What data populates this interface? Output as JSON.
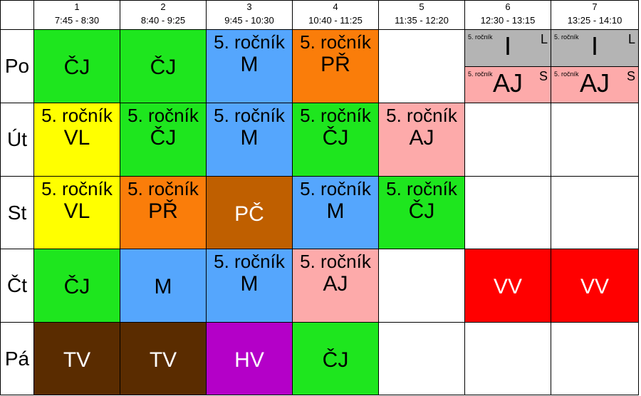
{
  "colors": {
    "green": "#1ee61e",
    "blue": "#55a6fd",
    "orange": "#fa7d0a",
    "pink": "#fdaaaa",
    "yellow": "#ffff00",
    "brown_light": "#bf5f00",
    "brown_dark": "#5a2c00",
    "purple": "#b400c8",
    "red": "#ff0000",
    "gray": "#b4b4b4",
    "white": "#ffffff"
  },
  "periods": [
    {
      "num": "1",
      "time": "7:45 - 8:30"
    },
    {
      "num": "2",
      "time": "8:40 - 9:25"
    },
    {
      "num": "3",
      "time": "9:45 - 10:30"
    },
    {
      "num": "4",
      "time": "10:40 - 11:25"
    },
    {
      "num": "5",
      "time": "11:35 - 12:20"
    },
    {
      "num": "6",
      "time": "12:30 - 13:15"
    },
    {
      "num": "7",
      "time": "13:25 - 14:10"
    }
  ],
  "days": [
    {
      "label": "Po",
      "cells": [
        {
          "subject": "ČJ",
          "color": "green"
        },
        {
          "subject": "ČJ",
          "color": "green"
        },
        {
          "subject": "M",
          "sub": "5. ročník",
          "color": "blue"
        },
        {
          "subject": "PŘ",
          "sub": "5. ročník",
          "color": "orange"
        },
        {
          "color": "white"
        },
        {
          "split": [
            {
              "subject": "I",
              "sub": "5. ročník",
              "corner": "L",
              "color": "gray"
            },
            {
              "subject": "AJ",
              "sub": "5. ročník",
              "corner": "S",
              "color": "pink"
            }
          ]
        },
        {
          "split": [
            {
              "subject": "I",
              "sub": "5. ročník",
              "corner": "L",
              "color": "gray"
            },
            {
              "subject": "AJ",
              "sub": "5. ročník",
              "corner": "S",
              "color": "pink"
            }
          ]
        }
      ]
    },
    {
      "label": "Út",
      "cells": [
        {
          "subject": "VL",
          "sub": "5. ročník",
          "color": "yellow"
        },
        {
          "subject": "ČJ",
          "sub": "5. ročník",
          "color": "green"
        },
        {
          "subject": "M",
          "sub": "5. ročník",
          "color": "blue"
        },
        {
          "subject": "ČJ",
          "sub": "5. ročník",
          "color": "green"
        },
        {
          "subject": "AJ",
          "sub": "5. ročník",
          "color": "pink"
        },
        {
          "color": "white"
        },
        {
          "color": "white"
        }
      ]
    },
    {
      "label": "St",
      "cells": [
        {
          "subject": "VL",
          "sub": "5. ročník",
          "color": "yellow"
        },
        {
          "subject": "PŘ",
          "sub": "5. ročník",
          "color": "orange"
        },
        {
          "subject": "PČ",
          "color": "brown_light",
          "text": "white"
        },
        {
          "subject": "M",
          "sub": "5. ročník",
          "color": "blue"
        },
        {
          "subject": "ČJ",
          "sub": "5. ročník",
          "color": "green"
        },
        {
          "color": "white"
        },
        {
          "color": "white"
        }
      ]
    },
    {
      "label": "Čt",
      "cells": [
        {
          "subject": "ČJ",
          "color": "green"
        },
        {
          "subject": "M",
          "color": "blue"
        },
        {
          "subject": "M",
          "sub": "5. ročník",
          "color": "blue"
        },
        {
          "subject": "AJ",
          "sub": "5. ročník",
          "color": "pink"
        },
        {
          "color": "white"
        },
        {
          "subject": "VV",
          "color": "red",
          "text": "white"
        },
        {
          "subject": "VV",
          "color": "red",
          "text": "white"
        }
      ]
    },
    {
      "label": "Pá",
      "cells": [
        {
          "subject": "TV",
          "color": "brown_dark",
          "text": "white"
        },
        {
          "subject": "TV",
          "color": "brown_dark",
          "text": "white"
        },
        {
          "subject": "HV",
          "color": "purple",
          "text": "white"
        },
        {
          "subject": "ČJ",
          "color": "green"
        },
        {
          "color": "white"
        },
        {
          "color": "white"
        },
        {
          "color": "white"
        }
      ]
    }
  ]
}
